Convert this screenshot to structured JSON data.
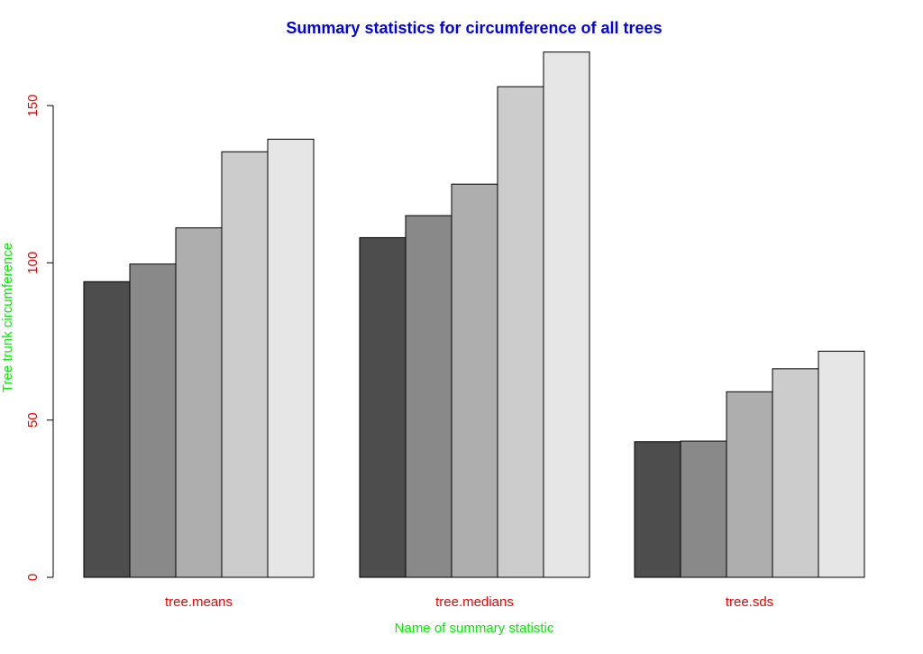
{
  "chart_data": {
    "type": "bar",
    "title": "Summary statistics for circumference of all trees",
    "xlabel": "Name of summary statistic",
    "ylabel": "Tree trunk circumference",
    "categories": [
      "tree.means",
      "tree.medians",
      "tree.sds"
    ],
    "series": [
      {
        "values": [
          94.0,
          108.0,
          43.1
        ],
        "color": "#4d4d4d"
      },
      {
        "values": [
          99.6,
          115.0,
          43.3
        ],
        "color": "#898989"
      },
      {
        "values": [
          111.1,
          125.0,
          59.0
        ],
        "color": "#aeaeae"
      },
      {
        "values": [
          135.3,
          156.0,
          66.3
        ],
        "color": "#cccccc"
      },
      {
        "values": [
          139.3,
          167.0,
          71.9
        ],
        "color": "#e6e6e6"
      }
    ],
    "yticks": [
      0,
      50,
      100,
      150
    ],
    "ylim": [
      0,
      167
    ],
    "grid": false,
    "legend": "none",
    "colors": {
      "title": "#0000ee",
      "axis_labels": "#00ee00",
      "tick_labels": "#ee0000",
      "bar_border": "#000000"
    }
  }
}
